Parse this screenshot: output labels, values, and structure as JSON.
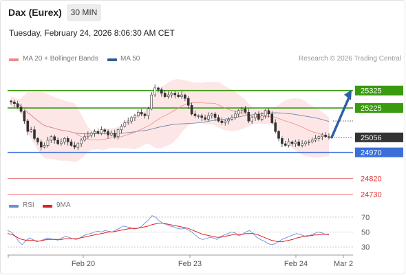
{
  "header": {
    "instrument": "Dax (Eurex)",
    "timeframe": "30 MIN",
    "datetime": "Tuesday, February 24, 2026 8:06:30 AM CET"
  },
  "legend": {
    "ma20": "MA 20 + Bollinger Bands",
    "ma50": "MA 50",
    "credit": "Research © 2026 Trading Central",
    "colors": {
      "ma20": "#f08a8a",
      "ma50": "#2e5a94",
      "bands": "#fde6e6"
    }
  },
  "rsi_legend": {
    "rsi": "RSI",
    "ma9": "9MA",
    "colors": {
      "rsi": "#6a8fd8",
      "ma9": "#e02020"
    }
  },
  "chart_data": [
    {
      "type": "candlestick",
      "title": "Dax (Eurex)",
      "ylim": [
        24700,
        25470
      ],
      "x_tick_labels": [
        "Feb 20",
        "Feb 23",
        "Feb 24",
        "Mar 2"
      ],
      "levels": [
        {
          "value": 25325,
          "label": "25325",
          "kind": "resistance",
          "color": "#3a9a10"
        },
        {
          "value": 25225,
          "label": "25225",
          "kind": "resistance",
          "color": "#3a9a10"
        },
        {
          "value": 25056,
          "label": "25056",
          "kind": "last-price",
          "color": "#333333"
        },
        {
          "value": 24970,
          "label": "24970",
          "kind": "pivot",
          "color": "#3a6fd8"
        },
        {
          "value": 24820,
          "label": "24820",
          "kind": "support",
          "color": "#e03030"
        },
        {
          "value": 24730,
          "label": "24730",
          "kind": "support",
          "color": "#e03030"
        }
      ],
      "forecast_arrow": {
        "from": 25056,
        "to": 25325,
        "direction": "up"
      },
      "close_series": [
        25260,
        25250,
        25230,
        25205,
        25150,
        25090,
        25100,
        25050,
        25030,
        25000,
        25010,
        25040,
        25060,
        25040,
        25020,
        25030,
        25050,
        25030,
        25010,
        25000,
        25020,
        25040,
        25060,
        25070,
        25080,
        25090,
        25080,
        25100,
        25090,
        25070,
        25080,
        25060,
        25100,
        25120,
        25140,
        25150,
        25170,
        25180,
        25200,
        25190,
        25180,
        25220,
        25300,
        25340,
        25330,
        25310,
        25290,
        25300,
        25310,
        25300,
        25290,
        25300,
        25280,
        25240,
        25190,
        25180,
        25180,
        25170,
        25160,
        25180,
        25190,
        25170,
        25150,
        25140,
        25150,
        25160,
        25170,
        25190,
        25210,
        25220,
        25200,
        25150,
        25170,
        25190,
        25160,
        25180,
        25210,
        25190,
        25140,
        25090,
        25050,
        25020,
        25010,
        25030,
        25020,
        25030,
        25010,
        25020,
        25030,
        25030,
        25040,
        25050,
        25060,
        25070,
        25060,
        25056
      ]
    },
    {
      "type": "line",
      "title": "",
      "series": [
        {
          "name": "RSI",
          "values": [
            52,
            50,
            45,
            38,
            33,
            38,
            42,
            40,
            37,
            38,
            40,
            42,
            41,
            40,
            39,
            42,
            44,
            43,
            41,
            40,
            42,
            45,
            47,
            48,
            50,
            51,
            50,
            52,
            51,
            50,
            53,
            55,
            58,
            57,
            56,
            54,
            55,
            57,
            62,
            66,
            72,
            70,
            65,
            62,
            60,
            58,
            57,
            55,
            54,
            55,
            53,
            50,
            46,
            42,
            40,
            41,
            43,
            42,
            40,
            44,
            46,
            48,
            50,
            49,
            45,
            47,
            50,
            52,
            48,
            43,
            40,
            38,
            35,
            33,
            34,
            37,
            40,
            42,
            44,
            46,
            48,
            47,
            45,
            44,
            46,
            48,
            50,
            49,
            47,
            46
          ]
        },
        {
          "name": "9MA",
          "values": [
            48,
            47,
            45,
            42,
            40,
            39,
            39,
            39,
            38,
            38,
            39,
            40,
            40,
            40,
            40,
            40,
            41,
            41,
            41,
            41,
            42,
            43,
            44,
            45,
            46,
            47,
            48,
            49,
            50,
            50,
            51,
            52,
            53,
            54,
            55,
            55,
            55,
            56,
            57,
            58,
            60,
            61,
            62,
            62,
            61,
            60,
            59,
            58,
            57,
            56,
            55,
            53,
            51,
            49,
            47,
            46,
            45,
            44,
            43,
            43,
            44,
            45,
            46,
            47,
            47,
            47,
            48,
            48,
            48,
            47,
            45,
            43,
            41,
            39,
            38,
            37,
            37,
            38,
            39,
            40,
            42,
            43,
            44,
            45,
            45,
            46,
            46,
            47,
            47,
            47
          ]
        }
      ],
      "ylim": [
        20,
        80
      ],
      "y_tick_labels": [
        "70",
        "50",
        "30"
      ]
    }
  ]
}
